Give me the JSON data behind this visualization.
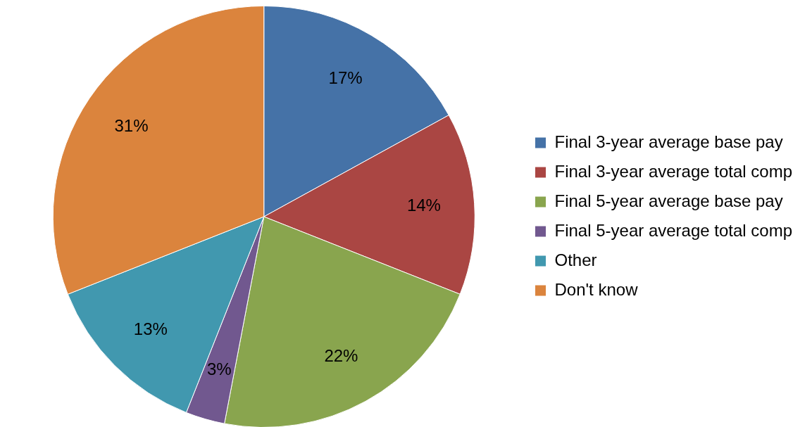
{
  "chart_data": {
    "type": "pie",
    "categories": [
      "Final 3-year average base pay",
      "Final 3-year average total comp",
      "Final 5-year average base pay",
      "Final 5-year average total comp",
      "Other",
      "Don't know"
    ],
    "values": [
      17,
      14,
      22,
      3,
      13,
      31
    ],
    "value_labels": [
      "17%",
      "14%",
      "22%",
      "3%",
      "13%",
      "31%"
    ],
    "colors": [
      "#4572a7",
      "#aa4643",
      "#89a54e",
      "#71588f",
      "#4198af",
      "#db843d"
    ],
    "legend": "right"
  }
}
